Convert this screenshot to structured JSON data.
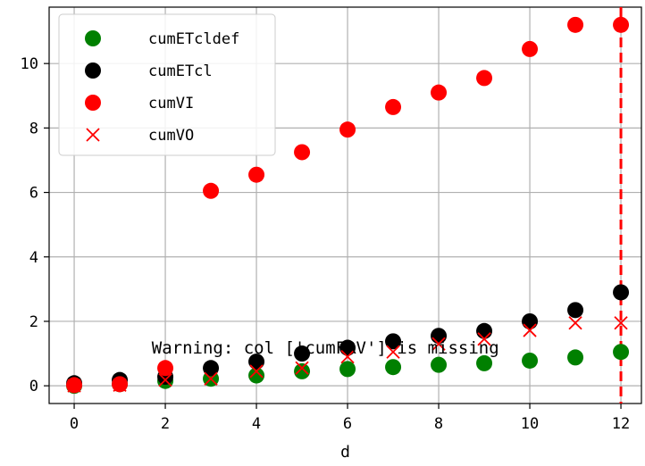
{
  "chart_data": {
    "type": "scatter",
    "title": "",
    "xlabel": "d",
    "ylabel": "",
    "xlim": [
      -0.55,
      12.45
    ],
    "ylim": [
      -0.55,
      11.75
    ],
    "xticks": [
      0,
      2,
      4,
      6,
      8,
      10,
      12
    ],
    "yticks": [
      0,
      2,
      4,
      6,
      8,
      10
    ],
    "grid": true,
    "legend_position": "top-left",
    "series": [
      {
        "name": "cumETcldef",
        "marker": "circle",
        "color": "#008000",
        "x": [
          0,
          1,
          2,
          3,
          4,
          5,
          6,
          7,
          8,
          9,
          10,
          11,
          12
        ],
        "y": [
          0.0,
          0.05,
          0.15,
          0.22,
          0.32,
          0.45,
          0.52,
          0.58,
          0.65,
          0.7,
          0.78,
          0.88,
          1.05
        ]
      },
      {
        "name": "cumETcl",
        "marker": "circle",
        "color": "#000000",
        "x": [
          0,
          1,
          2,
          3,
          4,
          5,
          6,
          7,
          8,
          9,
          10,
          11,
          12
        ],
        "y": [
          0.08,
          0.18,
          0.28,
          0.55,
          0.75,
          1.0,
          1.18,
          1.38,
          1.55,
          1.7,
          2.0,
          2.35,
          2.9
        ]
      },
      {
        "name": "cumVI",
        "marker": "circle",
        "color": "#ff0000",
        "x": [
          0,
          1,
          2,
          3,
          4,
          5,
          6,
          7,
          8,
          9,
          10,
          11,
          12
        ],
        "y": [
          0.02,
          0.05,
          0.55,
          6.05,
          6.55,
          7.25,
          7.95,
          8.65,
          9.1,
          9.55,
          10.45,
          11.2,
          11.2
        ]
      },
      {
        "name": "cumVO",
        "marker": "x",
        "color": "#ff0000",
        "x": [
          0,
          1,
          2,
          3,
          4,
          5,
          6,
          7,
          8,
          9,
          10,
          11,
          12
        ],
        "y": [
          0.0,
          0.02,
          0.18,
          0.22,
          0.45,
          0.55,
          0.9,
          1.05,
          1.3,
          1.45,
          1.72,
          1.95,
          1.95
        ]
      }
    ],
    "vline": {
      "x": 12,
      "color": "#ff0000",
      "style": "dashed"
    },
    "annotation": {
      "text": "Warning: col ['cumFRV'] is missing",
      "x": 1.7,
      "y": 1.0
    }
  }
}
